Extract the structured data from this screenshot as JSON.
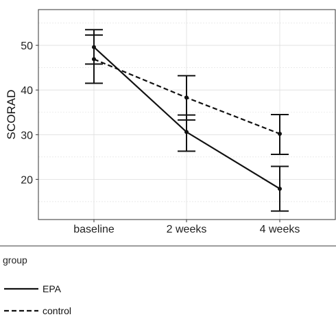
{
  "chart_data": {
    "type": "line",
    "categories": [
      "baseline",
      "2 weeks",
      "4 weeks"
    ],
    "xlabel": "",
    "ylabel": "SCORAD",
    "ylim": [
      11,
      58
    ],
    "yticks": [
      20,
      30,
      40,
      50
    ],
    "grid": true,
    "legend_position": "bottom-left",
    "legend_title": "group",
    "series": [
      {
        "name": "EPA",
        "linestyle": "solid",
        "values": [
          49.6,
          30.6,
          17.9
        ],
        "err_low": [
          41.5,
          26.3,
          12.9
        ],
        "err_high": [
          53.5,
          34.4,
          22.9
        ]
      },
      {
        "name": "control",
        "linestyle": "dashed",
        "values": [
          46.9,
          38.3,
          30.2
        ],
        "err_low": [
          45.8,
          33.3,
          25.6
        ],
        "err_high": [
          52.3,
          43.2,
          34.5
        ]
      }
    ],
    "colors": {
      "line": "#111111",
      "grid": "#dddddd",
      "panel_border": "#333333"
    }
  },
  "legend": {
    "title": "group",
    "items": [
      {
        "label": "EPA",
        "style": "solid"
      },
      {
        "label": "control",
        "style": "dashed"
      }
    ]
  }
}
